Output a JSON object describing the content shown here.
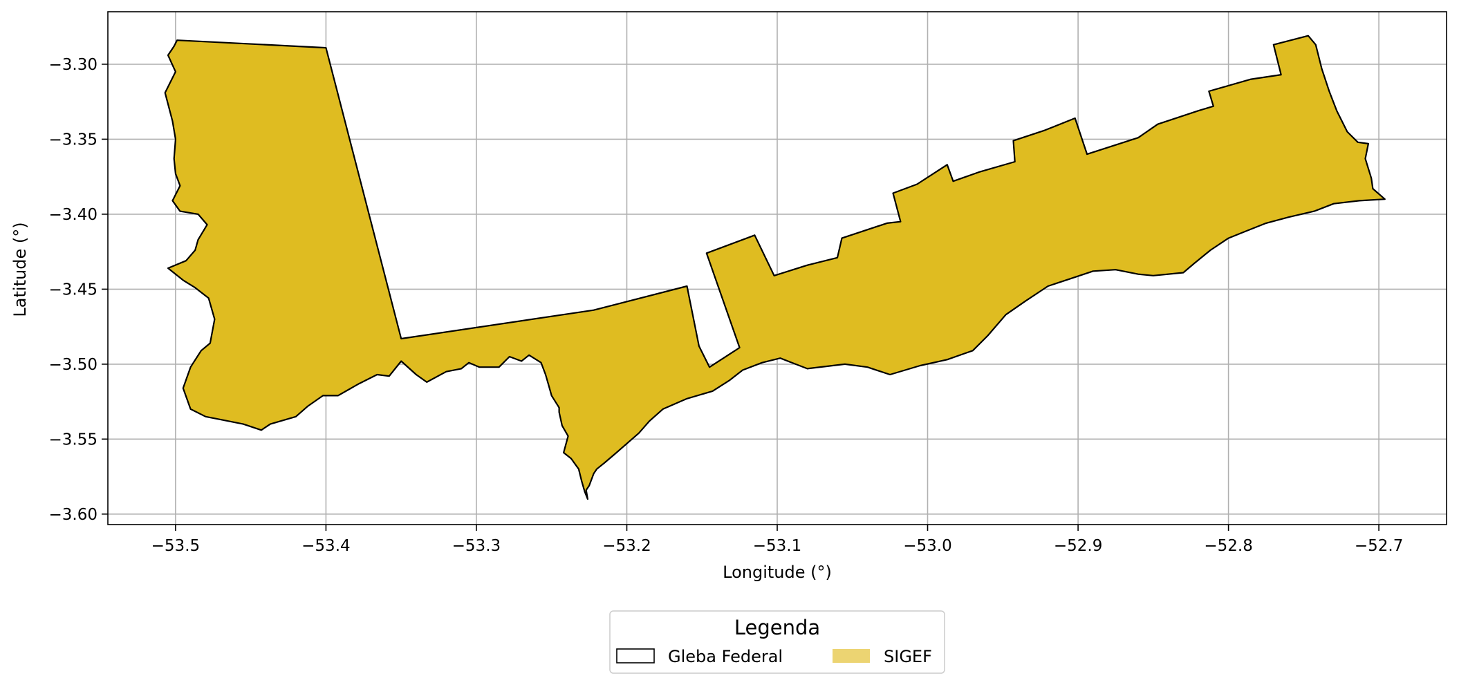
{
  "chart_data": {
    "type": "map",
    "xlabel": "Longitude (°)",
    "ylabel": "Latitude (°)",
    "xlim": [
      -53.545,
      -52.655
    ],
    "ylim": [
      -3.607,
      -3.265
    ],
    "xticks": [
      -53.5,
      -53.4,
      -53.3,
      -53.2,
      -53.1,
      -53.0,
      -52.9,
      -52.8,
      -52.7
    ],
    "yticks": [
      -3.3,
      -3.35,
      -3.4,
      -3.45,
      -3.5,
      -3.55,
      -3.6
    ],
    "xtick_labels": [
      "−53.5",
      "−53.4",
      "−53.3",
      "−53.2",
      "−53.1",
      "−53.0",
      "−52.9",
      "−52.8",
      "−52.7"
    ],
    "ytick_labels": [
      "−3.30",
      "−3.35",
      "−3.40",
      "−3.45",
      "−3.50",
      "−3.55",
      "−3.60"
    ],
    "grid": true,
    "legend": {
      "title": "Legenda",
      "placement": "bottom-center",
      "entries": [
        {
          "label": "Gleba Federal",
          "style": "outline",
          "edge": "#000000",
          "fill": "#ffffff"
        },
        {
          "label": "SIGEF",
          "style": "fill",
          "fill": "#ecd472"
        }
      ]
    },
    "colors": {
      "polygon_fill": "#dfbc21",
      "polygon_edge": "#000000",
      "grid": "#b0b0b0"
    },
    "polygon": [
      [
        -53.499,
        -3.284
      ],
      [
        -53.4,
        -3.289
      ],
      [
        -53.35,
        -3.483
      ],
      [
        -53.222,
        -3.464
      ],
      [
        -53.16,
        -3.448
      ],
      [
        -53.152,
        -3.488
      ],
      [
        -53.145,
        -3.502
      ],
      [
        -53.125,
        -3.489
      ],
      [
        -53.147,
        -3.426
      ],
      [
        -53.115,
        -3.414
      ],
      [
        -53.102,
        -3.441
      ],
      [
        -53.08,
        -3.434
      ],
      [
        -53.06,
        -3.429
      ],
      [
        -53.057,
        -3.416
      ],
      [
        -53.027,
        -3.406
      ],
      [
        -53.018,
        -3.405
      ],
      [
        -53.023,
        -3.386
      ],
      [
        -53.007,
        -3.38
      ],
      [
        -52.987,
        -3.367
      ],
      [
        -52.983,
        -3.378
      ],
      [
        -52.966,
        -3.372
      ],
      [
        -52.942,
        -3.365
      ],
      [
        -52.943,
        -3.351
      ],
      [
        -52.922,
        -3.344
      ],
      [
        -52.902,
        -3.336
      ],
      [
        -52.894,
        -3.36
      ],
      [
        -52.86,
        -3.349
      ],
      [
        -52.847,
        -3.34
      ],
      [
        -52.82,
        -3.331
      ],
      [
        -52.81,
        -3.328
      ],
      [
        -52.813,
        -3.318
      ],
      [
        -52.785,
        -3.31
      ],
      [
        -52.765,
        -3.307
      ],
      [
        -52.77,
        -3.287
      ],
      [
        -52.747,
        -3.281
      ],
      [
        -52.742,
        -3.287
      ],
      [
        -52.738,
        -3.303
      ],
      [
        -52.733,
        -3.318
      ],
      [
        -52.728,
        -3.331
      ],
      [
        -52.721,
        -3.345
      ],
      [
        -52.714,
        -3.352
      ],
      [
        -52.707,
        -3.353
      ],
      [
        -52.709,
        -3.363
      ],
      [
        -52.705,
        -3.376
      ],
      [
        -52.704,
        -3.383
      ],
      [
        -52.696,
        -3.39
      ],
      [
        -52.713,
        -3.391
      ],
      [
        -52.73,
        -3.393
      ],
      [
        -52.743,
        -3.398
      ],
      [
        -52.76,
        -3.402
      ],
      [
        -52.775,
        -3.406
      ],
      [
        -52.79,
        -3.412
      ],
      [
        -52.8,
        -3.416
      ],
      [
        -52.812,
        -3.424
      ],
      [
        -52.823,
        -3.433
      ],
      [
        -52.83,
        -3.439
      ],
      [
        -52.85,
        -3.441
      ],
      [
        -52.86,
        -3.44
      ],
      [
        -52.875,
        -3.437
      ],
      [
        -52.89,
        -3.438
      ],
      [
        -52.905,
        -3.443
      ],
      [
        -52.92,
        -3.448
      ],
      [
        -52.935,
        -3.458
      ],
      [
        -52.948,
        -3.467
      ],
      [
        -52.96,
        -3.481
      ],
      [
        -52.97,
        -3.491
      ],
      [
        -52.987,
        -3.497
      ],
      [
        -53.005,
        -3.501
      ],
      [
        -53.025,
        -3.507
      ],
      [
        -53.04,
        -3.502
      ],
      [
        -53.055,
        -3.5
      ],
      [
        -53.08,
        -3.503
      ],
      [
        -53.098,
        -3.496
      ],
      [
        -53.11,
        -3.499
      ],
      [
        -53.123,
        -3.504
      ],
      [
        -53.132,
        -3.511
      ],
      [
        -53.143,
        -3.518
      ],
      [
        -53.16,
        -3.523
      ],
      [
        -53.176,
        -3.53
      ],
      [
        -53.185,
        -3.538
      ],
      [
        -53.192,
        -3.546
      ],
      [
        -53.2,
        -3.553
      ],
      [
        -53.208,
        -3.56
      ],
      [
        -53.215,
        -3.566
      ],
      [
        -53.22,
        -3.57
      ],
      [
        -53.222,
        -3.573
      ],
      [
        -53.225,
        -3.581
      ],
      [
        -53.227,
        -3.584
      ],
      [
        -53.226,
        -3.59
      ],
      [
        -53.228,
        -3.585
      ],
      [
        -53.23,
        -3.578
      ],
      [
        -53.232,
        -3.57
      ],
      [
        -53.237,
        -3.563
      ],
      [
        -53.242,
        -3.559
      ],
      [
        -53.239,
        -3.548
      ],
      [
        -53.243,
        -3.541
      ],
      [
        -53.245,
        -3.532
      ],
      [
        -53.245,
        -3.529
      ],
      [
        -53.25,
        -3.521
      ],
      [
        -53.252,
        -3.514
      ],
      [
        -53.254,
        -3.507
      ],
      [
        -53.257,
        -3.499
      ],
      [
        -53.265,
        -3.494
      ],
      [
        -53.27,
        -3.498
      ],
      [
        -53.278,
        -3.495
      ],
      [
        -53.285,
        -3.502
      ],
      [
        -53.298,
        -3.502
      ],
      [
        -53.305,
        -3.499
      ],
      [
        -53.31,
        -3.503
      ],
      [
        -53.32,
        -3.505
      ],
      [
        -53.333,
        -3.512
      ],
      [
        -53.34,
        -3.507
      ],
      [
        -53.35,
        -3.498
      ],
      [
        -53.358,
        -3.508
      ],
      [
        -53.366,
        -3.507
      ],
      [
        -53.378,
        -3.513
      ],
      [
        -53.392,
        -3.521
      ],
      [
        -53.402,
        -3.521
      ],
      [
        -53.412,
        -3.528
      ],
      [
        -53.42,
        -3.535
      ],
      [
        -53.437,
        -3.54
      ],
      [
        -53.443,
        -3.544
      ],
      [
        -53.455,
        -3.54
      ],
      [
        -53.47,
        -3.537
      ],
      [
        -53.48,
        -3.535
      ],
      [
        -53.49,
        -3.53
      ],
      [
        -53.495,
        -3.516
      ],
      [
        -53.49,
        -3.502
      ],
      [
        -53.483,
        -3.491
      ],
      [
        -53.477,
        -3.486
      ],
      [
        -53.474,
        -3.47
      ],
      [
        -53.478,
        -3.456
      ],
      [
        -53.487,
        -3.449
      ],
      [
        -53.495,
        -3.444
      ],
      [
        -53.505,
        -3.436
      ],
      [
        -53.493,
        -3.431
      ],
      [
        -53.487,
        -3.424
      ],
      [
        -53.485,
        -3.417
      ],
      [
        -53.479,
        -3.407
      ],
      [
        -53.485,
        -3.4
      ],
      [
        -53.497,
        -3.398
      ],
      [
        -53.502,
        -3.391
      ],
      [
        -53.497,
        -3.381
      ],
      [
        -53.5,
        -3.373
      ],
      [
        -53.501,
        -3.363
      ],
      [
        -53.5,
        -3.35
      ],
      [
        -53.502,
        -3.338
      ],
      [
        -53.507,
        -3.319
      ],
      [
        -53.5,
        -3.305
      ],
      [
        -53.505,
        -3.294
      ],
      [
        -53.501,
        -3.288
      ]
    ]
  }
}
